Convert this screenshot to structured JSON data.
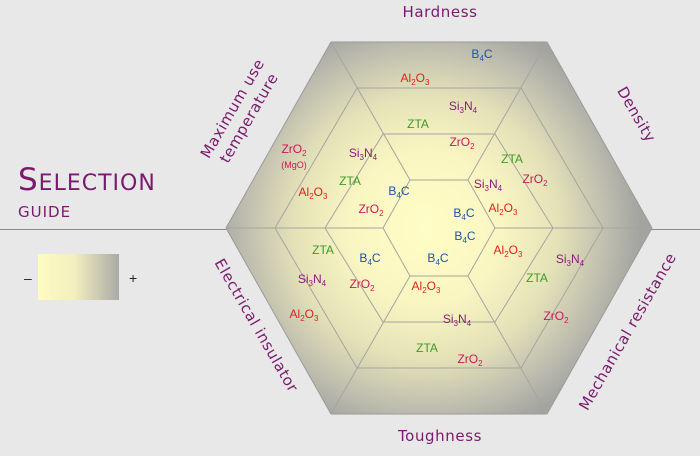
{
  "title": {
    "line1": "Selection",
    "line2": "guide"
  },
  "legend": {
    "minus": "–",
    "plus": "+"
  },
  "axes": {
    "top": "Hardness",
    "top_right": "Density",
    "bottom_right": "Mechanical resistance",
    "bottom": "Toughness",
    "bottom_left": "Electrical insulator",
    "top_left_line1": "Maximum use",
    "top_left_line2": "temperature"
  },
  "colors": {
    "ZrO2": "#c8185a",
    "Al2O3": "#e0201c",
    "Si3N4": "#8a1c7a",
    "B4C": "#1d53a8",
    "ZTA": "#3f9a28",
    "MgO": "#c8185a"
  },
  "materials": {
    "ZrO2": {
      "base": "ZrO",
      "sub": "2"
    },
    "Al2O3": {
      "a": "Al",
      "s1": "2",
      "b": "O",
      "s2": "3"
    },
    "Si3N4": {
      "a": "Si",
      "s1": "3",
      "b": "N",
      "s2": "4"
    },
    "B4C": {
      "a": "B",
      "s1": "4",
      "b": "C"
    },
    "ZTA": {
      "text": "ZTA"
    },
    "MgO": "(MgO)"
  }
}
